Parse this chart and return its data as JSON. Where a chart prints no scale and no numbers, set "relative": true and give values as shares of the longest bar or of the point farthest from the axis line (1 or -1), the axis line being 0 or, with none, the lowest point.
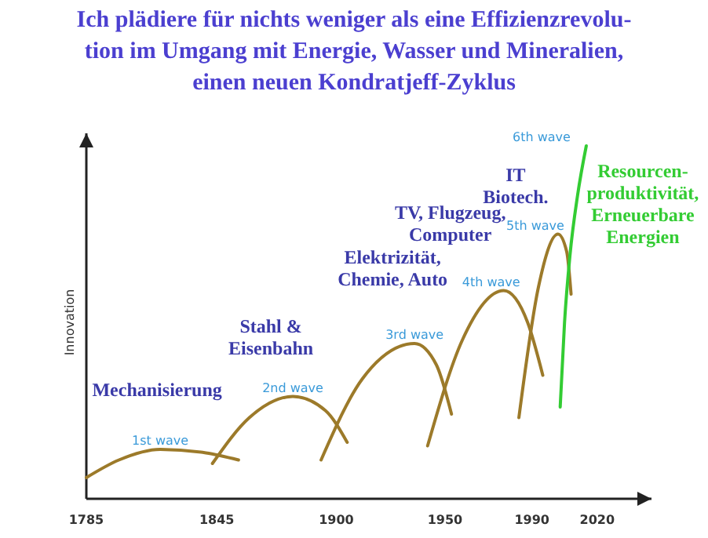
{
  "chart_data": {
    "type": "line",
    "relative": true,
    "title": "Ich plädiere für nichts weniger als eine Effizienzrevolu-\ntion im Umgang mit Energie, Wasser und Mineralien,\neinen neuen Kondratjeff-Zyklus",
    "ylabel": "Innovation",
    "xlim": [
      1785,
      2045
    ],
    "xticks": [
      1785,
      1845,
      1900,
      1950,
      1990,
      2020
    ],
    "series": [
      {
        "name": "1st wave",
        "color": "#9c7a2a",
        "x": [
          1785,
          1800,
          1819,
          1840,
          1855
        ],
        "values": [
          0.06,
          0.11,
          0.14,
          0.13,
          0.11
        ]
      },
      {
        "name": "2nd wave",
        "color": "#9c7a2a",
        "x": [
          1843,
          1860,
          1880,
          1895,
          1905
        ],
        "values": [
          0.1,
          0.23,
          0.29,
          0.25,
          0.16
        ]
      },
      {
        "name": "3rd wave",
        "color": "#9c7a2a",
        "x": [
          1893,
          1912,
          1936,
          1946,
          1953
        ],
        "values": [
          0.11,
          0.34,
          0.44,
          0.38,
          0.24
        ]
      },
      {
        "name": "4th wave",
        "color": "#9c7a2a",
        "x": [
          1942,
          1958,
          1977,
          1988,
          1995
        ],
        "values": [
          0.15,
          0.45,
          0.59,
          0.5,
          0.35
        ]
      },
      {
        "name": "5th wave",
        "color": "#9c7a2a",
        "x": [
          1984,
          1993,
          2002,
          2006,
          2008
        ],
        "values": [
          0.23,
          0.6,
          0.75,
          0.7,
          0.58
        ]
      },
      {
        "name": "6th wave",
        "color": "#33cc33",
        "x": [
          2003,
          2005,
          2007.5,
          2011,
          2015
        ],
        "values": [
          0.26,
          0.5,
          0.69,
          0.86,
          1.0
        ]
      }
    ],
    "annotations": [
      "Mechanisierung",
      "Stahl &\nEisenbahn",
      "Elektrizität,\nChemie, Auto",
      "TV, Flugzeug,\nComputer",
      "IT\nBiotech.",
      "Resourcen-\nproduktivität,\nErneuerbare\nEnergien"
    ]
  }
}
